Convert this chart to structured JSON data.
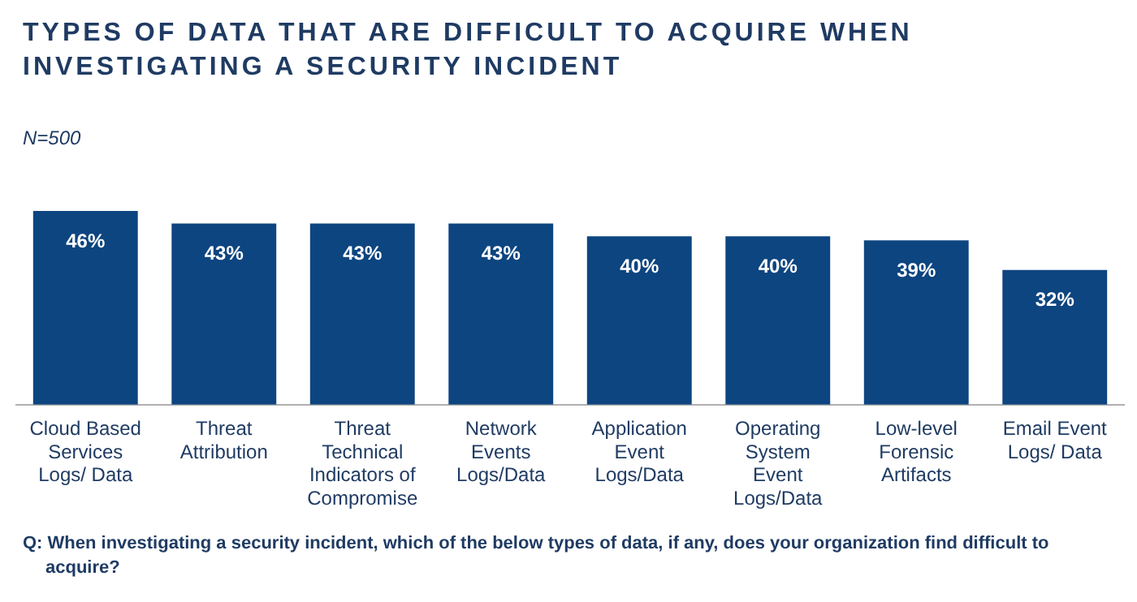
{
  "chart_data": {
    "type": "bar",
    "title": "TYPES OF DATA THAT ARE DIFFICULT TO ACQUIRE WHEN INVESTIGATING A SECURITY INCIDENT",
    "subtitle": "N=500",
    "categories": [
      "Cloud Based Services Logs/ Data",
      "Threat Attribution",
      "Threat Technical Indicators of Compromise",
      "Network Events Logs/Data",
      "Application Event Logs/Data",
      "Operating System Event Logs/Data",
      "Low-level Forensic Artifacts",
      "Email Event Logs/ Data"
    ],
    "values": [
      46,
      43,
      43,
      43,
      40,
      40,
      39,
      32
    ],
    "value_labels": [
      "46%",
      "43%",
      "43%",
      "43%",
      "40%",
      "40%",
      "39%",
      "32%"
    ],
    "color": "#0d4580",
    "annotations": [
      "Q: When investigating a security incident, which of the below types of data, if any, does your organization find difficult to acquire?"
    ]
  }
}
